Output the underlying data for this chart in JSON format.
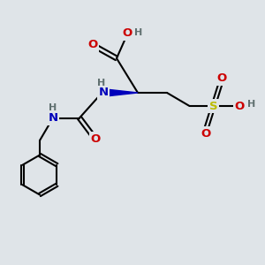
{
  "bg_color": "#dfe4e8",
  "atom_colors": {
    "C": "#000000",
    "O": "#cc0000",
    "N": "#0000bb",
    "S": "#bbbb00",
    "H": "#607070"
  },
  "bond_color": "#000000",
  "bond_width": 1.5,
  "font_size_atoms": 9.5,
  "font_size_h": 8.0,
  "xlim": [
    0,
    10
  ],
  "ylim": [
    0,
    10
  ]
}
